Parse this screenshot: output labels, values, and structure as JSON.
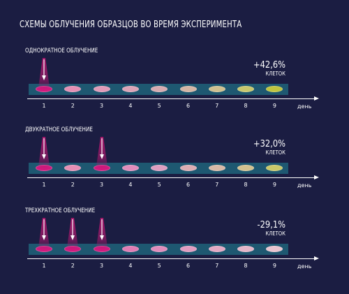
{
  "title": "СХЕМЫ ОБЛУЧЕНИЯ ОБРАЗЦОВ ВО ВРЕМЯ ЭКСПЕРИМЕНТА",
  "axis_unit": "день",
  "days": [
    "1",
    "2",
    "3",
    "4",
    "5",
    "6",
    "7",
    "8",
    "9"
  ],
  "schemes": [
    {
      "label": "ОДНОКРАТНОЕ ОБЛУЧЕНИЕ",
      "result": "+42,6%",
      "result_unit": "КЛЕТОК",
      "irradiated_days": [
        1
      ],
      "dish_colors": [
        "#d0197e",
        "#e48fb4",
        "#e09ab8",
        "#dca3b6",
        "#d6abb0",
        "#d3b5a4",
        "#cfc08f",
        "#c8c76c",
        "#bfc43e"
      ]
    },
    {
      "label": "ДВУКРАТНОЕ ОБЛУЧЕНИЕ",
      "result": "+32,0%",
      "result_unit": "КЛЕТОК",
      "irradiated_days": [
        1,
        3
      ],
      "dish_colors": [
        "#d0197e",
        "#e48fb4",
        "#d0197e",
        "#e08cbb",
        "#dc9ec0",
        "#dcadb2",
        "#d8b8a6",
        "#d3c18e",
        "#c9c868"
      ]
    },
    {
      "label": "ТРЕХКРАТНОЕ ОБЛУЧЕНИЕ",
      "result": "-29,1%",
      "result_unit": "КЛЕТОК",
      "irradiated_days": [
        1,
        2,
        3
      ],
      "dish_colors": [
        "#d0197e",
        "#d0197e",
        "#d0197e",
        "#e07cb4",
        "#e08cbb",
        "#e09cc0",
        "#e2a8c3",
        "#e4b5c8",
        "#e8c4cf"
      ]
    }
  ],
  "colors": {
    "background": "#1b1d42",
    "track": "#1e5871",
    "beam": "#b0186f"
  }
}
